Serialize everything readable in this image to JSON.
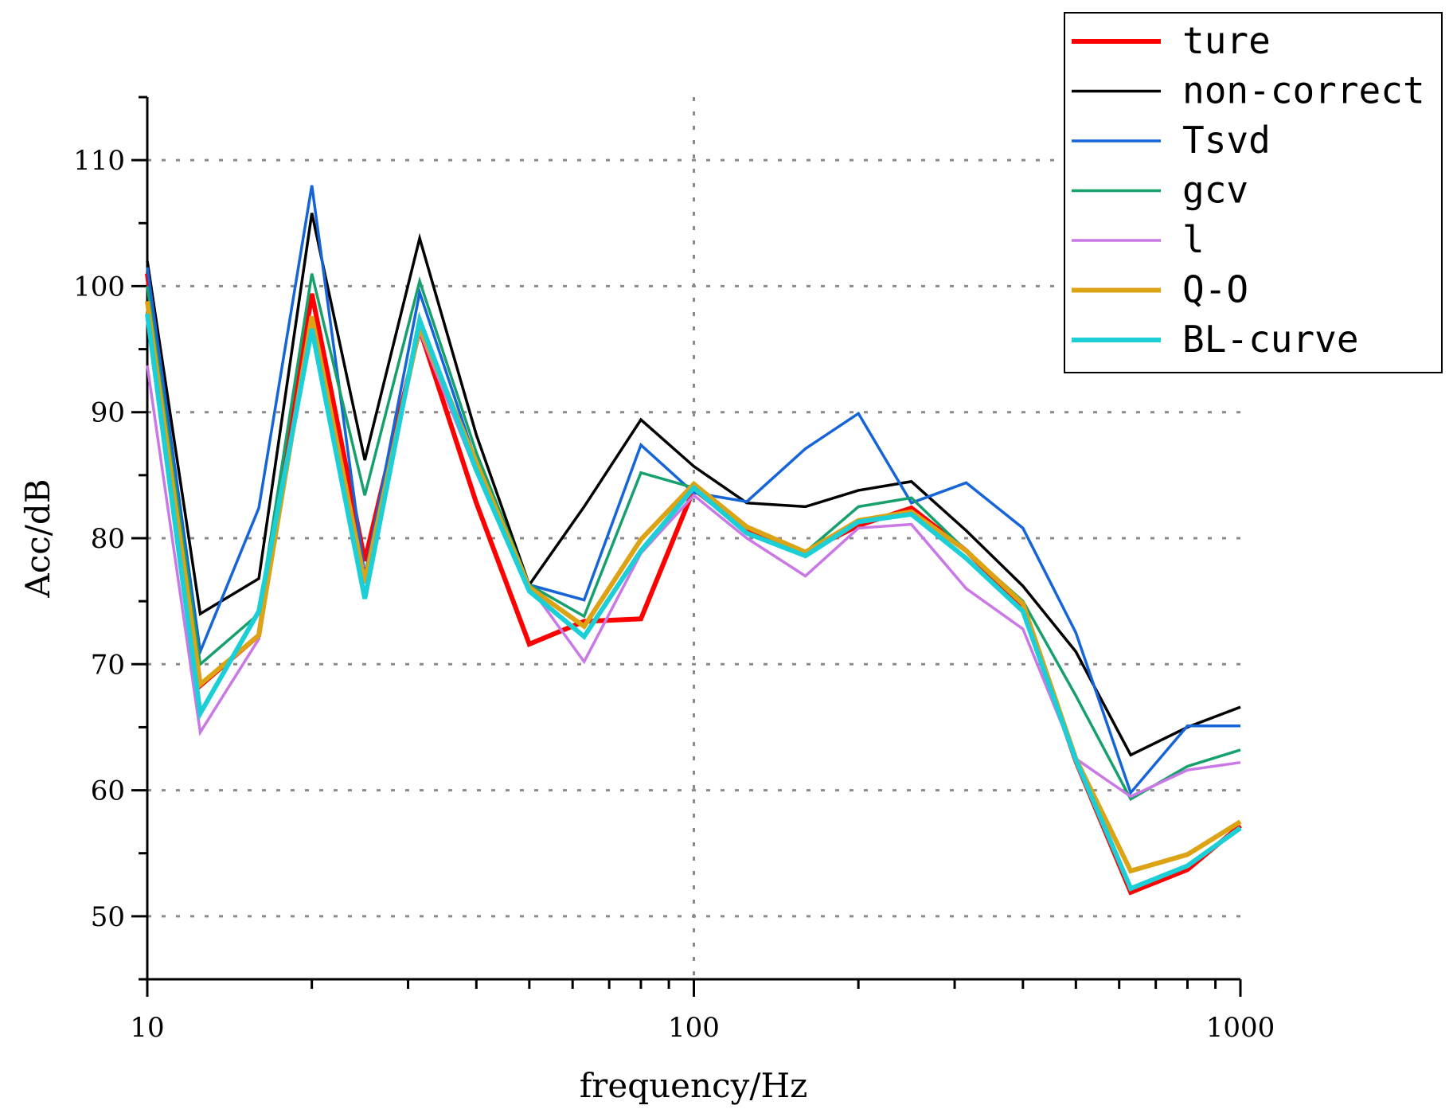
{
  "chart_data": {
    "type": "line",
    "title": "",
    "xlabel": "frequency/Hz",
    "ylabel": "Acc/dB",
    "xscale": "log",
    "xlim": [
      10,
      1000
    ],
    "ylim": [
      45,
      115
    ],
    "x_ticks": [
      10,
      100,
      1000
    ],
    "x_tick_labels": [
      "10",
      "100",
      "1000"
    ],
    "y_ticks": [
      50,
      60,
      70,
      80,
      90,
      100,
      110
    ],
    "y_tick_labels": [
      "50",
      "60",
      "70",
      "80",
      "90",
      "100",
      "110"
    ],
    "grid": "dotted",
    "legend_position": "top-right",
    "x": [
      10,
      12.5,
      16,
      20,
      25,
      31.5,
      40,
      50,
      63,
      80,
      100,
      125,
      160,
      200,
      250,
      315,
      400,
      500,
      630,
      800,
      1000
    ],
    "series": [
      {
        "name": "ture",
        "color": "#ff0000",
        "width": 6,
        "values": [
          101,
          68.3,
          72.3,
          99.4,
          78.2,
          96.6,
          82.8,
          71.6,
          73.4,
          73.6,
          83.9,
          80.6,
          78.9,
          81,
          82.4,
          79,
          74.5,
          62.3,
          51.9,
          53.7,
          57.2
        ]
      },
      {
        "name": "non-correct",
        "color": "#000000",
        "width": 3.5,
        "values": [
          102,
          74,
          76.8,
          105.8,
          86.2,
          103.8,
          88.2,
          76.3,
          82.5,
          89.4,
          85.7,
          82.8,
          82.5,
          83.8,
          84.5,
          80.6,
          76.2,
          71,
          62.8,
          65,
          66.6
        ]
      },
      {
        "name": "Tsvd",
        "color": "#1565d8",
        "width": 3.5,
        "values": [
          101.5,
          71,
          82.4,
          108,
          77,
          99.5,
          86,
          76.3,
          75.1,
          87.4,
          83.6,
          82.9,
          87.1,
          89.9,
          82.8,
          84.4,
          80.8,
          72.5,
          59.8,
          65.1,
          65.1
        ]
      },
      {
        "name": "gcv",
        "color": "#16a06c",
        "width": 3.5,
        "values": [
          100,
          70,
          74,
          101,
          83.4,
          100.4,
          86.8,
          76.3,
          73.8,
          85.2,
          84,
          80.9,
          78.9,
          82.5,
          83.2,
          79,
          75,
          67.5,
          59.3,
          61.9,
          63.2
        ]
      },
      {
        "name": "l",
        "color": "#c978e6",
        "width": 3.5,
        "values": [
          93.7,
          64.6,
          72,
          97.3,
          76.4,
          96.4,
          85.2,
          76.2,
          70.2,
          78.8,
          83.4,
          80,
          77,
          80.8,
          81.1,
          76,
          72.8,
          62.5,
          59.5,
          61.6,
          62.2
        ]
      },
      {
        "name": "Q-O",
        "color": "#dca314",
        "width": 6,
        "values": [
          98.8,
          68.4,
          72.3,
          97.6,
          76.5,
          96.8,
          86,
          76.1,
          73,
          79.9,
          84.3,
          80.9,
          78.9,
          81.4,
          82.1,
          79,
          74.8,
          62.5,
          53.6,
          54.9,
          57.5
        ]
      },
      {
        "name": "BL-curve",
        "color": "#1ccfd6",
        "width": 6,
        "values": [
          97.8,
          66.1,
          74.2,
          96.6,
          75.2,
          97.3,
          85.4,
          75.8,
          72.2,
          79,
          84,
          80.4,
          78.6,
          81.3,
          81.9,
          78.4,
          74.2,
          62.4,
          52.2,
          54,
          57
        ]
      }
    ]
  }
}
